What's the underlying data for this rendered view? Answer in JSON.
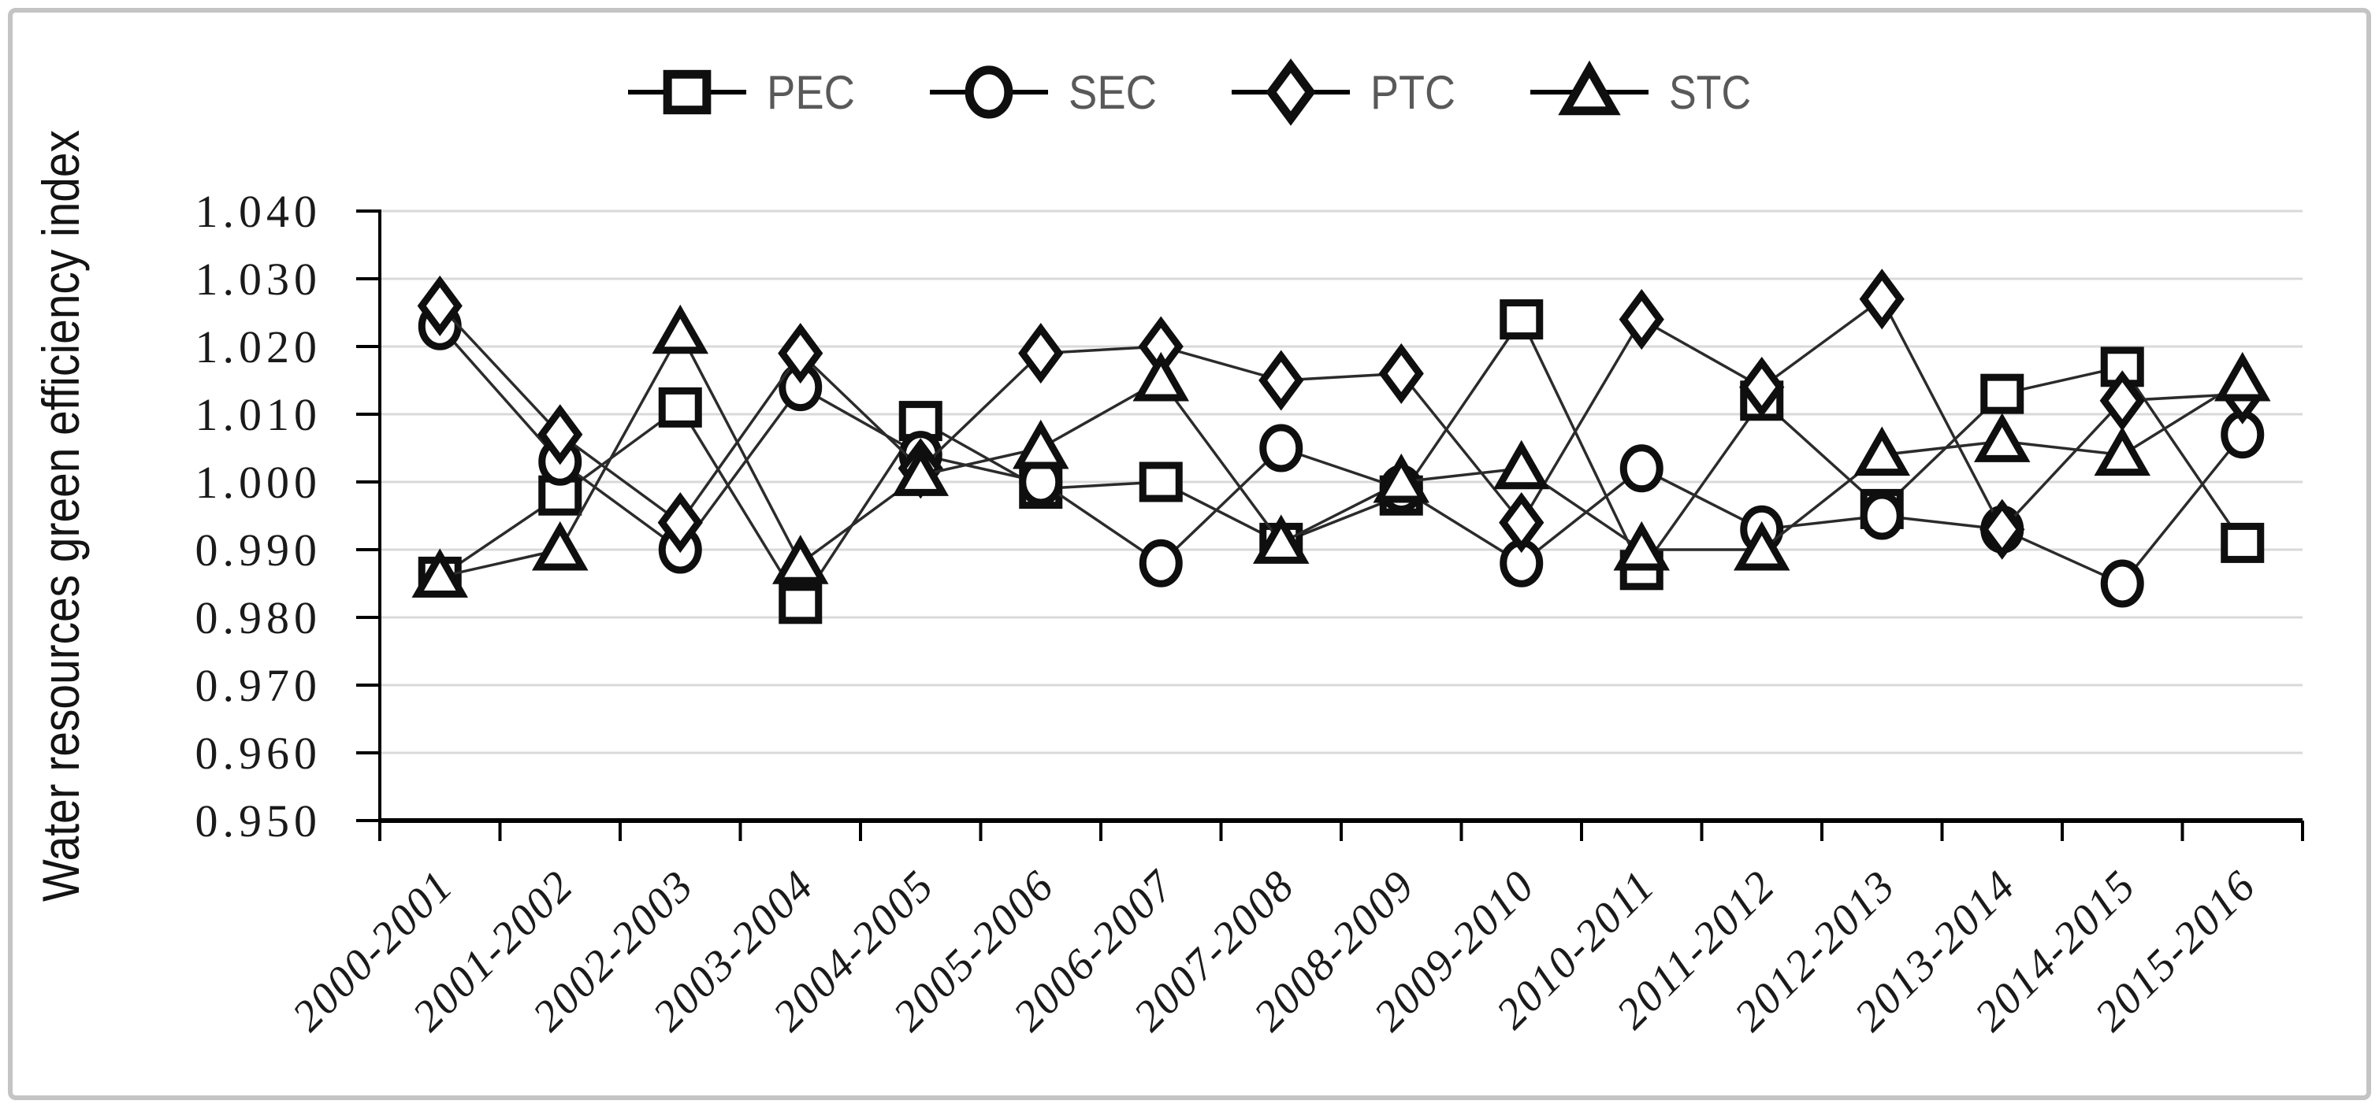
{
  "chart_data": {
    "type": "line",
    "title": "",
    "xlabel": "",
    "ylabel": "Water resources green efficiency index",
    "ylim": [
      0.95,
      1.04
    ],
    "y_tick_step": 0.01,
    "y_ticks": [
      "1.040",
      "1.030",
      "1.020",
      "1.010",
      "1.000",
      "0.990",
      "0.980",
      "0.970",
      "0.960",
      "0.950"
    ],
    "grid": "horizontal",
    "legend_position": "top-center",
    "categories": [
      "2000-2001",
      "2001-2002",
      "2002-2003",
      "2003-2004",
      "2004-2005",
      "2005-2006",
      "2006-2007",
      "2007-2008",
      "2008-2009",
      "2009-2010",
      "2010-2011",
      "2011-2012",
      "2012-2013",
      "2013-2014",
      "2014-2015",
      "2015-2016"
    ],
    "series": [
      {
        "name": "PEC",
        "marker": "square",
        "values": [
          0.986,
          0.998,
          1.011,
          0.982,
          1.009,
          0.999,
          1.0,
          0.991,
          0.998,
          1.024,
          0.987,
          1.012,
          0.996,
          1.013,
          1.017,
          0.991
        ]
      },
      {
        "name": "SEC",
        "marker": "circle",
        "values": [
          1.023,
          1.003,
          0.99,
          1.014,
          1.004,
          1.0,
          0.988,
          1.005,
          0.999,
          0.988,
          1.002,
          0.993,
          0.995,
          0.993,
          0.985,
          1.007
        ]
      },
      {
        "name": "PTC",
        "marker": "diamond",
        "values": [
          1.026,
          1.007,
          0.994,
          1.019,
          1.002,
          1.019,
          1.02,
          1.015,
          1.016,
          0.994,
          1.024,
          1.014,
          1.027,
          0.993,
          1.012,
          1.013
        ]
      },
      {
        "name": "STC",
        "marker": "triangle",
        "values": [
          0.986,
          0.99,
          1.022,
          0.988,
          1.001,
          1.005,
          1.015,
          0.991,
          1.0,
          1.002,
          0.99,
          0.99,
          1.004,
          1.006,
          1.004,
          1.015
        ]
      }
    ],
    "colors": {
      "series_line": "#2b2b2b",
      "marker_stroke": "#0f0f0f",
      "marker_fill": "#ffffff",
      "grid": "#d9d9d9",
      "axis": "#000000",
      "tick_text": "#1a1a1a",
      "legend_text": "#595959",
      "frame_border": "#c4c4c4"
    }
  }
}
